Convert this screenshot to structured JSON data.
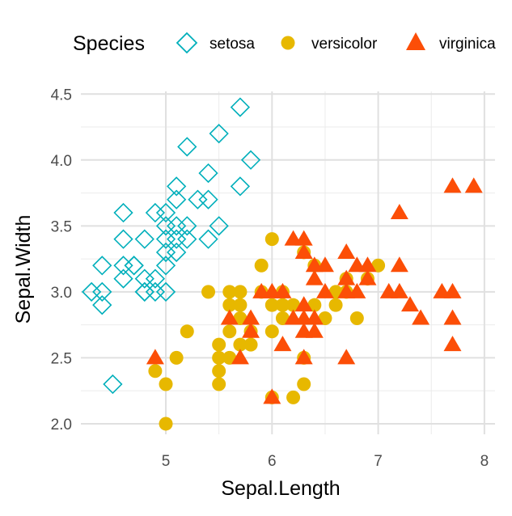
{
  "chart_data": {
    "type": "scatter",
    "title": "",
    "xlabel": "Sepal.Length",
    "ylabel": "Sepal.Width",
    "xlim": [
      4.2,
      8.1
    ],
    "ylim": [
      1.92,
      4.52
    ],
    "x_ticks": [
      5,
      6,
      7,
      8
    ],
    "x_tick_labels": [
      "5",
      "6",
      "7",
      "8"
    ],
    "y_ticks": [
      2.0,
      2.5,
      3.0,
      3.5,
      4.0,
      4.5
    ],
    "y_tick_labels": [
      "2.0",
      "2.5",
      "3.0",
      "3.5",
      "4.0",
      "4.5"
    ],
    "grid": true,
    "legend": {
      "title": "Species",
      "position": "top"
    },
    "series": [
      {
        "name": "setosa",
        "shape": "open-diamond",
        "color": "#00AFBB",
        "points": [
          [
            4.3,
            3.0
          ],
          [
            4.4,
            3.2
          ],
          [
            4.4,
            3.0
          ],
          [
            4.4,
            2.9
          ],
          [
            4.5,
            2.3
          ],
          [
            4.6,
            3.6
          ],
          [
            4.6,
            3.4
          ],
          [
            4.6,
            3.2
          ],
          [
            4.6,
            3.1
          ],
          [
            4.7,
            3.2
          ],
          [
            4.7,
            3.2
          ],
          [
            4.8,
            3.4
          ],
          [
            4.8,
            3.1
          ],
          [
            4.8,
            3.0
          ],
          [
            4.8,
            3.0
          ],
          [
            4.9,
            3.6
          ],
          [
            4.9,
            3.1
          ],
          [
            4.9,
            3.0
          ],
          [
            5.0,
            3.6
          ],
          [
            5.0,
            3.5
          ],
          [
            5.0,
            3.4
          ],
          [
            5.0,
            3.3
          ],
          [
            5.0,
            3.2
          ],
          [
            5.0,
            3.0
          ],
          [
            5.1,
            3.8
          ],
          [
            5.1,
            3.7
          ],
          [
            5.1,
            3.5
          ],
          [
            5.1,
            3.4
          ],
          [
            5.1,
            3.3
          ],
          [
            5.2,
            4.1
          ],
          [
            5.2,
            3.5
          ],
          [
            5.2,
            3.4
          ],
          [
            5.3,
            3.7
          ],
          [
            5.4,
            3.9
          ],
          [
            5.4,
            3.7
          ],
          [
            5.4,
            3.4
          ],
          [
            5.5,
            4.2
          ],
          [
            5.5,
            3.5
          ],
          [
            5.7,
            4.4
          ],
          [
            5.7,
            3.8
          ],
          [
            5.8,
            4.0
          ]
        ]
      },
      {
        "name": "versicolor",
        "shape": "filled-circle",
        "color": "#E7B800",
        "points": [
          [
            4.9,
            2.4
          ],
          [
            5.0,
            2.3
          ],
          [
            5.0,
            2.0
          ],
          [
            5.1,
            2.5
          ],
          [
            5.2,
            2.7
          ],
          [
            5.4,
            3.0
          ],
          [
            5.5,
            2.6
          ],
          [
            5.5,
            2.5
          ],
          [
            5.5,
            2.4
          ],
          [
            5.5,
            2.3
          ],
          [
            5.6,
            3.0
          ],
          [
            5.6,
            2.9
          ],
          [
            5.6,
            2.7
          ],
          [
            5.6,
            2.5
          ],
          [
            5.7,
            3.0
          ],
          [
            5.7,
            2.9
          ],
          [
            5.7,
            2.8
          ],
          [
            5.7,
            2.6
          ],
          [
            5.8,
            2.7
          ],
          [
            5.8,
            2.6
          ],
          [
            5.9,
            3.2
          ],
          [
            5.9,
            3.0
          ],
          [
            6.0,
            3.4
          ],
          [
            6.0,
            2.9
          ],
          [
            6.0,
            2.7
          ],
          [
            6.0,
            2.2
          ],
          [
            6.1,
            3.0
          ],
          [
            6.1,
            2.9
          ],
          [
            6.1,
            2.8
          ],
          [
            6.2,
            2.9
          ],
          [
            6.2,
            2.2
          ],
          [
            6.3,
            3.3
          ],
          [
            6.3,
            2.5
          ],
          [
            6.3,
            2.3
          ],
          [
            6.4,
            3.2
          ],
          [
            6.4,
            2.9
          ],
          [
            6.5,
            2.8
          ],
          [
            6.6,
            3.0
          ],
          [
            6.6,
            2.9
          ],
          [
            6.7,
            3.1
          ],
          [
            6.7,
            3.0
          ],
          [
            6.8,
            2.8
          ],
          [
            6.9,
            3.1
          ],
          [
            7.0,
            3.2
          ]
        ]
      },
      {
        "name": "virginica",
        "shape": "filled-triangle",
        "color": "#FC4E07",
        "points": [
          [
            4.9,
            2.5
          ],
          [
            5.6,
            2.8
          ],
          [
            5.7,
            2.5
          ],
          [
            5.8,
            2.8
          ],
          [
            5.8,
            2.7
          ],
          [
            5.9,
            3.0
          ],
          [
            6.0,
            3.0
          ],
          [
            6.0,
            2.2
          ],
          [
            6.1,
            3.0
          ],
          [
            6.1,
            2.6
          ],
          [
            6.2,
            3.4
          ],
          [
            6.2,
            2.8
          ],
          [
            6.3,
            3.4
          ],
          [
            6.3,
            3.3
          ],
          [
            6.3,
            2.9
          ],
          [
            6.3,
            2.8
          ],
          [
            6.3,
            2.7
          ],
          [
            6.3,
            2.5
          ],
          [
            6.4,
            3.2
          ],
          [
            6.4,
            3.1
          ],
          [
            6.4,
            2.8
          ],
          [
            6.4,
            2.7
          ],
          [
            6.5,
            3.2
          ],
          [
            6.5,
            3.0
          ],
          [
            6.7,
            3.3
          ],
          [
            6.7,
            3.1
          ],
          [
            6.7,
            3.0
          ],
          [
            6.7,
            2.5
          ],
          [
            6.8,
            3.2
          ],
          [
            6.8,
            3.0
          ],
          [
            6.9,
            3.2
          ],
          [
            6.9,
            3.1
          ],
          [
            7.1,
            3.0
          ],
          [
            7.2,
            3.6
          ],
          [
            7.2,
            3.2
          ],
          [
            7.2,
            3.0
          ],
          [
            7.3,
            2.9
          ],
          [
            7.4,
            2.8
          ],
          [
            7.6,
            3.0
          ],
          [
            7.7,
            3.8
          ],
          [
            7.7,
            3.0
          ],
          [
            7.7,
            2.8
          ],
          [
            7.7,
            2.6
          ],
          [
            7.9,
            3.8
          ]
        ]
      }
    ]
  }
}
